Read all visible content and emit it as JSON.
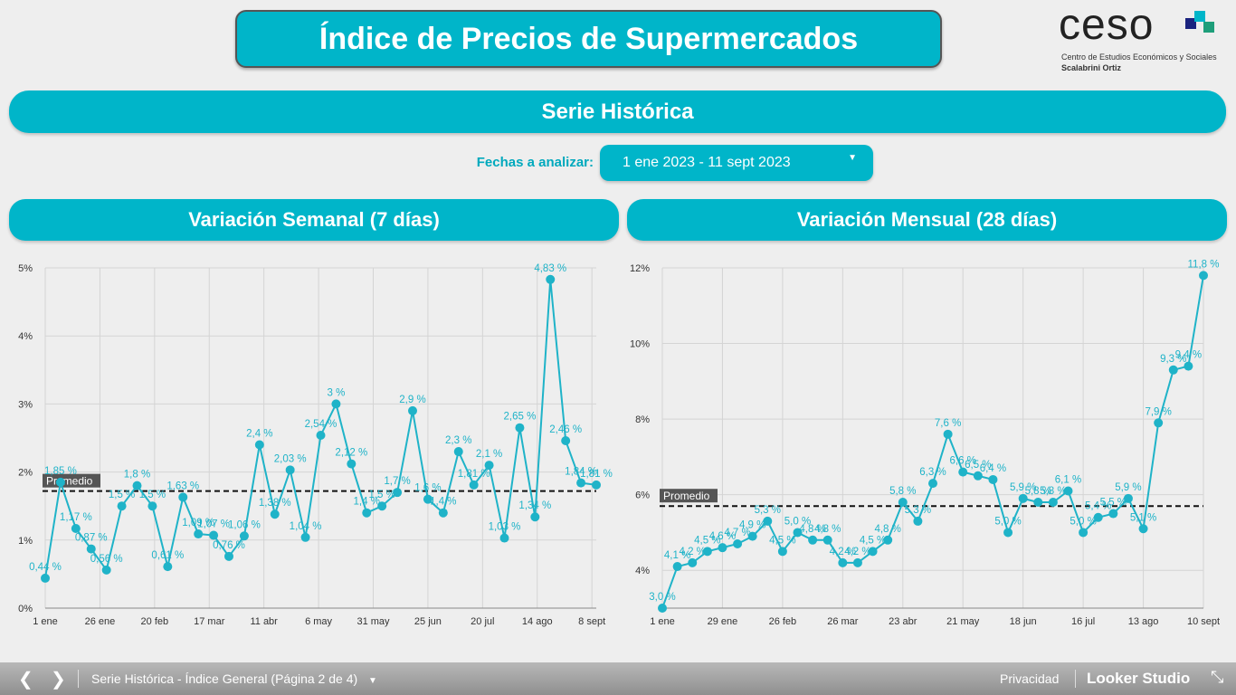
{
  "header": {
    "title": "Índice de Precios de Supermercados",
    "logo_text": "ceso",
    "logo_subtitle": "Centro de Estudios Económicos y Sociales",
    "logo_subtitle2": "Scalabrini Ortiz"
  },
  "section_title": "Serie Histórica",
  "date_filter": {
    "label": "Fechas a analizar:",
    "value": "1 ene 2023 - 11 sept 2023"
  },
  "chart_data": [
    {
      "type": "line",
      "title": "Variación Semanal (7 días)",
      "color": "#1fb3c8",
      "grid": true,
      "x": [
        "2023-01-01",
        "2023-01-08",
        "2023-01-15",
        "2023-01-22",
        "2023-01-29",
        "2023-02-05",
        "2023-02-12",
        "2023-02-19",
        "2023-02-26",
        "2023-03-05",
        "2023-03-12",
        "2023-03-19",
        "2023-03-26",
        "2023-04-02",
        "2023-04-09",
        "2023-04-16",
        "2023-04-23",
        "2023-04-30",
        "2023-05-07",
        "2023-05-14",
        "2023-05-21",
        "2023-05-28",
        "2023-06-04",
        "2023-06-11",
        "2023-06-18",
        "2023-06-25",
        "2023-07-02",
        "2023-07-09",
        "2023-07-16",
        "2023-07-23",
        "2023-07-30",
        "2023-08-06",
        "2023-08-13",
        "2023-08-20",
        "2023-08-27",
        "2023-09-03",
        "2023-09-10"
      ],
      "values": [
        0.44,
        1.85,
        1.17,
        0.87,
        0.56,
        1.5,
        1.8,
        1.5,
        0.61,
        1.63,
        1.09,
        1.07,
        0.76,
        1.06,
        2.4,
        1.38,
        2.03,
        1.04,
        2.54,
        3,
        2.12,
        1.4,
        1.5,
        1.7,
        2.9,
        1.6,
        1.4,
        2.3,
        1.81,
        2.1,
        1.03,
        2.65,
        1.34,
        4.83,
        2.46,
        1.84,
        1.81
      ],
      "value_labels": [
        "0,44 %",
        "1,85 %",
        "1,17 %",
        "0,87 %",
        "0,56 %",
        "1,5 %",
        "1,8 %",
        "1,5 %",
        "0,61 %",
        "1,63 %",
        "1,09 %",
        "1,07 %",
        "0,76 %",
        "1,06 %",
        "2,4 %",
        "1,38 %",
        "2,03 %",
        "1,04 %",
        "2,54 %",
        "3 %",
        "2,12 %",
        "1,4 %",
        "1,5 %",
        "1,7 %",
        "2,9 %",
        "1,6 %",
        "1,4 %",
        "2,3 %",
        "1,81 %",
        "2,1 %",
        "1,03 %",
        "2,65 %",
        "1,34 %",
        "4,83 %",
        "2,46 %",
        "1,84 %",
        "1,81 %"
      ],
      "xlim": [
        "2023-01-01",
        "2023-09-10"
      ],
      "xticks": [
        {
          "value": "2023-01-01",
          "label": "1 ene"
        },
        {
          "value": "2023-01-26",
          "label": "26 ene"
        },
        {
          "value": "2023-02-20",
          "label": "20 feb"
        },
        {
          "value": "2023-03-17",
          "label": "17 mar"
        },
        {
          "value": "2023-04-11",
          "label": "11 abr"
        },
        {
          "value": "2023-05-06",
          "label": "6 may"
        },
        {
          "value": "2023-05-31",
          "label": "31 may"
        },
        {
          "value": "2023-06-25",
          "label": "25 jun"
        },
        {
          "value": "2023-07-20",
          "label": "20 jul"
        },
        {
          "value": "2023-08-14",
          "label": "14 ago"
        },
        {
          "value": "2023-09-08",
          "label": "8 sept"
        }
      ],
      "ylim": [
        0,
        5
      ],
      "yticks": [
        {
          "value": 0,
          "label": "0%"
        },
        {
          "value": 1,
          "label": "1%"
        },
        {
          "value": 2,
          "label": "2%"
        },
        {
          "value": 3,
          "label": "3%"
        },
        {
          "value": 4,
          "label": "4%"
        },
        {
          "value": 5,
          "label": "5%"
        }
      ],
      "reference_line": {
        "label": "Promedio",
        "value": 1.72
      }
    },
    {
      "type": "line",
      "title": "Variación Mensual (28 días)",
      "color": "#1fb3c8",
      "grid": true,
      "x": [
        "2023-01-01",
        "2023-01-08",
        "2023-01-15",
        "2023-01-22",
        "2023-01-29",
        "2023-02-05",
        "2023-02-12",
        "2023-02-19",
        "2023-02-26",
        "2023-03-05",
        "2023-03-12",
        "2023-03-19",
        "2023-03-26",
        "2023-04-02",
        "2023-04-09",
        "2023-04-16",
        "2023-04-23",
        "2023-04-30",
        "2023-05-07",
        "2023-05-14",
        "2023-05-21",
        "2023-05-28",
        "2023-06-04",
        "2023-06-11",
        "2023-06-18",
        "2023-06-25",
        "2023-07-02",
        "2023-07-09",
        "2023-07-16",
        "2023-07-23",
        "2023-07-30",
        "2023-08-06",
        "2023-08-13",
        "2023-08-20",
        "2023-08-27",
        "2023-09-03",
        "2023-09-10"
      ],
      "values": [
        3.0,
        4.1,
        4.2,
        4.5,
        4.6,
        4.7,
        4.9,
        5.3,
        4.5,
        5.0,
        4.8,
        4.8,
        4.2,
        4.2,
        4.5,
        4.8,
        5.8,
        5.3,
        6.3,
        7.6,
        6.6,
        6.5,
        6.4,
        5.0,
        5.9,
        5.8,
        5.8,
        6.1,
        5.0,
        5.4,
        5.5,
        5.9,
        5.1,
        7.9,
        9.3,
        9.4,
        11.8
      ],
      "value_labels": [
        "3,0 %",
        "4,1 %",
        "4,2 %",
        "4,5 %",
        "4,6 %",
        "4,7 %",
        "4,9 %",
        "5,3 %",
        "4,5 %",
        "5,0 %",
        "4,8 %",
        "4,8 %",
        "4,2 %",
        "4,2 %",
        "4,5 %",
        "4,8 %",
        "5,8 %",
        "5,3 %",
        "6,3 %",
        "7,6 %",
        "6,6 %",
        "6,5 %",
        "6,4 %",
        "5,0 %",
        "5,9 %",
        "5,8 %",
        "5,8 %",
        "6,1 %",
        "5,0 %",
        "5,4 %",
        "5,5 %",
        "5,9 %",
        "5,1 %",
        "7,9 %",
        "9,3 %",
        "9,4 %",
        "11,8 %"
      ],
      "xlim": [
        "2023-01-01",
        "2023-09-10"
      ],
      "xticks": [
        {
          "value": "2023-01-01",
          "label": "1 ene"
        },
        {
          "value": "2023-01-29",
          "label": "29 ene"
        },
        {
          "value": "2023-02-26",
          "label": "26 feb"
        },
        {
          "value": "2023-03-26",
          "label": "26 mar"
        },
        {
          "value": "2023-04-23",
          "label": "23 abr"
        },
        {
          "value": "2023-05-21",
          "label": "21 may"
        },
        {
          "value": "2023-06-18",
          "label": "18 jun"
        },
        {
          "value": "2023-07-16",
          "label": "16 jul"
        },
        {
          "value": "2023-08-13",
          "label": "13 ago"
        },
        {
          "value": "2023-09-10",
          "label": "10 sept"
        }
      ],
      "ylim": [
        3,
        12
      ],
      "yticks": [
        {
          "value": 4,
          "label": "4%"
        },
        {
          "value": 6,
          "label": "6%"
        },
        {
          "value": 8,
          "label": "8%"
        },
        {
          "value": 10,
          "label": "10%"
        },
        {
          "value": 12,
          "label": "12%"
        }
      ],
      "reference_line": {
        "label": "Promedio",
        "value": 5.7
      }
    }
  ],
  "footer": {
    "page": "Serie Histórica - Índice General (Página 2 de 4)",
    "privacy": "Privacidad",
    "brand": "Looker Studio"
  }
}
